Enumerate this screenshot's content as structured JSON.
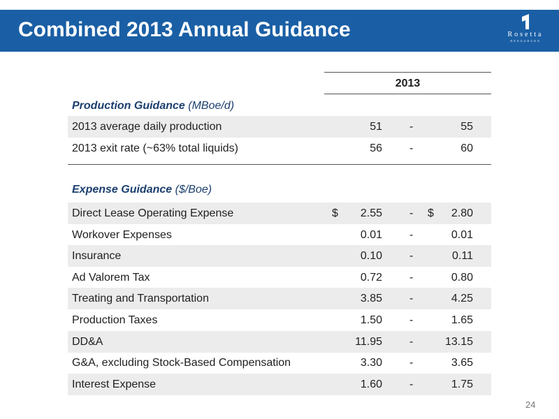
{
  "header": {
    "title": "Combined 2013 Annual Guidance"
  },
  "logo": {
    "name": "Rosetta",
    "sub": "RESOURCES"
  },
  "table": {
    "column_header": "2013",
    "production": {
      "title": "Production Guidance",
      "unit": "(MBoe/d)",
      "rows": [
        {
          "label": "2013 average daily production",
          "low": "51",
          "dash": "-",
          "high": "55"
        },
        {
          "label": "2013 exit rate (~63% total liquids)",
          "low": "56",
          "dash": "-",
          "high": "60"
        }
      ]
    },
    "expense": {
      "title": "Expense Guidance",
      "unit": "($/Boe)",
      "rows": [
        {
          "label": "Direct Lease Operating Expense",
          "cur1": "$",
          "low": "2.55",
          "dash": "-",
          "cur2": "$",
          "high": "2.80"
        },
        {
          "label": "Workover Expenses",
          "low": "0.01",
          "dash": "-",
          "high": "0.01"
        },
        {
          "label": "Insurance",
          "low": "0.10",
          "dash": "-",
          "high": "0.11"
        },
        {
          "label": "Ad Valorem Tax",
          "low": "0.72",
          "dash": "-",
          "high": "0.80"
        },
        {
          "label": "Treating and Transportation",
          "low": "3.85",
          "dash": "-",
          "high": "4.25"
        },
        {
          "label": "Production Taxes",
          "low": "1.50",
          "dash": "-",
          "high": "1.65"
        },
        {
          "label": "DD&A",
          "low": "11.95",
          "dash": "-",
          "high": "13.15"
        },
        {
          "label": "G&A, excluding Stock-Based Compensation",
          "low": "3.30",
          "dash": "-",
          "high": "3.65"
        },
        {
          "label": "Interest Expense",
          "low": "1.60",
          "dash": "-",
          "high": "1.75"
        }
      ]
    }
  },
  "footer": {
    "page_number": "24"
  },
  "colors": {
    "header_bg": "#1a5fa5",
    "section_title": "#1c3f6e",
    "row_shade": "#ececec"
  }
}
